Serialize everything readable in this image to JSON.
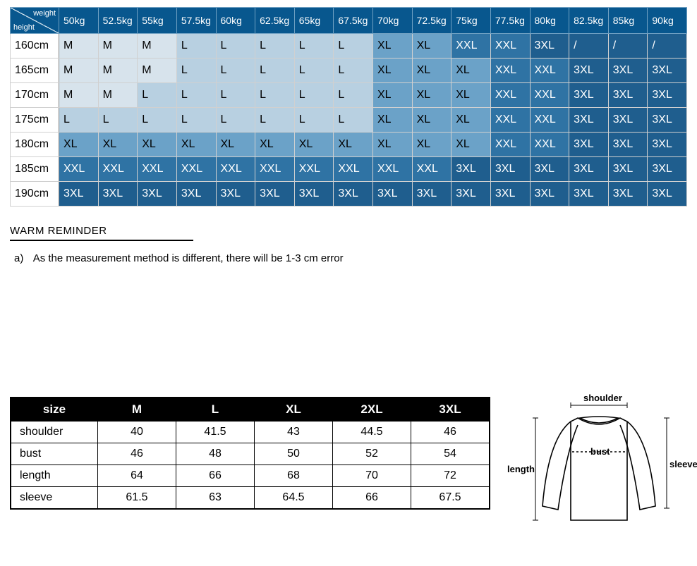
{
  "matrix": {
    "corner_top": "weight",
    "corner_bottom": "height",
    "weights": [
      "50kg",
      "52.5kg",
      "55kg",
      "57.5kg",
      "60kg",
      "62.5kg",
      "65kg",
      "67.5kg",
      "70kg",
      "72.5kg",
      "75kg",
      "77.5kg",
      "80kg",
      "82.5kg",
      "85kg",
      "90kg"
    ],
    "heights": [
      "160cm",
      "165cm",
      "170cm",
      "175cm",
      "180cm",
      "185cm",
      "190cm"
    ],
    "cells": [
      [
        "M",
        "M",
        "M",
        "L",
        "L",
        "L",
        "L",
        "L",
        "XL",
        "XL",
        "XXL",
        "XXL",
        "3XL",
        "/",
        "/",
        "/"
      ],
      [
        "M",
        "M",
        "M",
        "L",
        "L",
        "L",
        "L",
        "L",
        "XL",
        "XL",
        "XL",
        "XXL",
        "XXL",
        "3XL",
        "3XL",
        "3XL"
      ],
      [
        "M",
        "M",
        "L",
        "L",
        "L",
        "L",
        "L",
        "L",
        "XL",
        "XL",
        "XL",
        "XXL",
        "XXL",
        "3XL",
        "3XL",
        "3XL"
      ],
      [
        "L",
        "L",
        "L",
        "L",
        "L",
        "L",
        "L",
        "L",
        "XL",
        "XL",
        "XL",
        "XXL",
        "XXL",
        "3XL",
        "3XL",
        "3XL"
      ],
      [
        "XL",
        "XL",
        "XL",
        "XL",
        "XL",
        "XL",
        "XL",
        "XL",
        "XL",
        "XL",
        "XL",
        "XXL",
        "XXL",
        "3XL",
        "3XL",
        "3XL"
      ],
      [
        "XXL",
        "XXL",
        "XXL",
        "XXL",
        "XXL",
        "XXL",
        "XXL",
        "XXL",
        "XXL",
        "XXL",
        "3XL",
        "3XL",
        "3XL",
        "3XL",
        "3XL",
        "3XL"
      ],
      [
        "3XL",
        "3XL",
        "3XL",
        "3XL",
        "3XL",
        "3XL",
        "3XL",
        "3XL",
        "3XL",
        "3XL",
        "3XL",
        "3XL",
        "3XL",
        "3XL",
        "3XL",
        "3XL"
      ]
    ],
    "shades": [
      [
        0,
        0,
        0,
        1,
        1,
        1,
        1,
        1,
        3,
        3,
        5,
        5,
        6,
        6,
        6,
        6
      ],
      [
        0,
        0,
        0,
        1,
        1,
        1,
        1,
        1,
        3,
        3,
        3,
        5,
        5,
        6,
        6,
        6
      ],
      [
        0,
        0,
        1,
        1,
        1,
        1,
        1,
        1,
        3,
        3,
        3,
        5,
        5,
        6,
        6,
        6
      ],
      [
        1,
        1,
        1,
        1,
        1,
        1,
        1,
        1,
        3,
        3,
        3,
        5,
        5,
        6,
        6,
        6
      ],
      [
        3,
        3,
        3,
        3,
        3,
        3,
        3,
        3,
        3,
        3,
        3,
        5,
        5,
        6,
        6,
        6
      ],
      [
        5,
        5,
        5,
        5,
        5,
        5,
        5,
        5,
        5,
        5,
        6,
        6,
        6,
        6,
        6,
        6
      ],
      [
        6,
        6,
        6,
        6,
        6,
        6,
        6,
        6,
        6,
        6,
        6,
        6,
        6,
        6,
        6,
        6
      ]
    ],
    "header_bg": "#08578e",
    "header_color": "#ffffff",
    "shade_palette": [
      "#d7e3ec",
      "#b8d0e1",
      "#8fb9d6",
      "#6ba2c8",
      "#4a8bb7",
      "#2f73a4",
      "#1f5e8e"
    ]
  },
  "reminder": {
    "title": "WARM REMINDER",
    "bullet": "a)",
    "text": "As the measurement method is different, there will be 1-3 cm error"
  },
  "dimensions": {
    "header": [
      "size",
      "M",
      "L",
      "XL",
      "2XL",
      "3XL"
    ],
    "rows": [
      {
        "label": "shoulder",
        "values": [
          "40",
          "41.5",
          "43",
          "44.5",
          "46"
        ]
      },
      {
        "label": "bust",
        "values": [
          "46",
          "48",
          "50",
          "52",
          "54"
        ]
      },
      {
        "label": "length",
        "values": [
          "64",
          "66",
          "68",
          "70",
          "72"
        ]
      },
      {
        "label": "sleeve",
        "values": [
          "61.5",
          "63",
          "64.5",
          "66",
          "67.5"
        ]
      }
    ],
    "header_bg": "#000000",
    "header_color": "#ffffff",
    "border_color": "#000000",
    "fontsize": 16
  },
  "diagram": {
    "labels": {
      "shoulder": "shoulder",
      "bust": "bust",
      "length": "length",
      "sleeve": "sleeve"
    },
    "stroke": "#000000",
    "stroke_width": 1.5
  }
}
